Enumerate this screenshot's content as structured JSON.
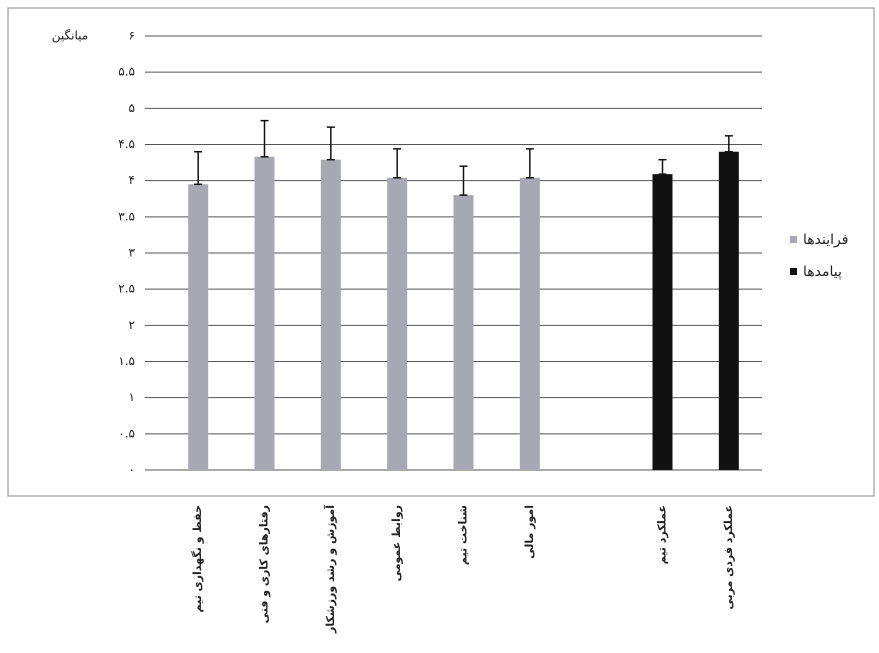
{
  "chart_data": {
    "type": "bar",
    "y_label": "میانگین",
    "categories": [
      "حفظ و نگهداری تیم",
      "رفتارهای کاری و فنی",
      "آموزش و رشد ورزشکار",
      "روابط عمومی",
      "شناخت تیم",
      "امور مالی",
      null,
      "عملکرد تیم",
      "عملکرد فردی مربی"
    ],
    "series": [
      {
        "name": "فرایندها",
        "color": "#a8a8b4",
        "values": [
          3.95,
          4.33,
          4.29,
          4.04,
          3.8,
          4.04,
          null,
          null,
          null
        ],
        "errors": [
          0.45,
          0.5,
          0.45,
          0.4,
          0.4,
          0.4,
          null,
          null,
          null
        ]
      },
      {
        "name": "پیامدها",
        "color": "#111111",
        "values": [
          null,
          null,
          null,
          null,
          null,
          null,
          null,
          4.09,
          4.4
        ],
        "errors": [
          null,
          null,
          null,
          null,
          null,
          null,
          null,
          0.2,
          0.22
        ]
      }
    ],
    "ylim": [
      0,
      6
    ],
    "yticks": [
      {
        "value": 0,
        "label": "۰"
      },
      {
        "value": 0.5,
        "label": "۰.۵"
      },
      {
        "value": 1,
        "label": "۱"
      },
      {
        "value": 1.5,
        "label": "۱.۵"
      },
      {
        "value": 2,
        "label": "۲"
      },
      {
        "value": 2.5,
        "label": "۲.۵"
      },
      {
        "value": 3,
        "label": "۳"
      },
      {
        "value": 3.5,
        "label": "۳.۵"
      },
      {
        "value": 4,
        "label": "۴"
      },
      {
        "value": 4.5,
        "label": "۴.۵"
      },
      {
        "value": 5,
        "label": "۵"
      },
      {
        "value": 5.5,
        "label": "۵.۵"
      },
      {
        "value": 6,
        "label": "۶"
      }
    ],
    "grid": true
  }
}
